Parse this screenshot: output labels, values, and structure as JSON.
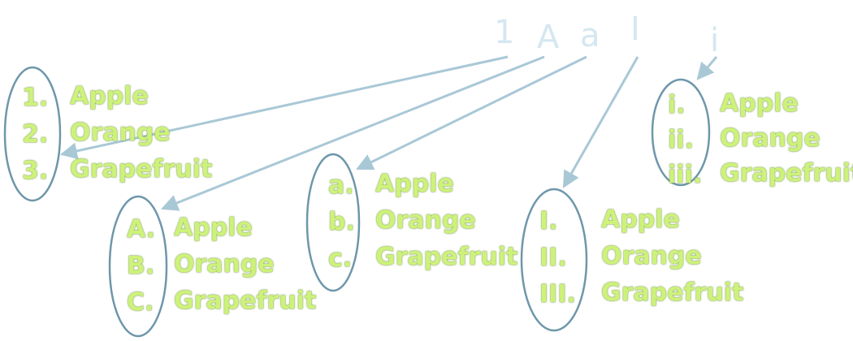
{
  "colors": {
    "header": "#d5e7f0",
    "arrow": "#a9c8d6",
    "ellipse": "#6e97aa",
    "item_fill": "#cdf27a",
    "item_outline": "#7c9950"
  },
  "headers": [
    "1",
    "A",
    "a",
    "I",
    "i"
  ],
  "groups": [
    {
      "type": "decimal",
      "markers": [
        "1.",
        "2.",
        "3."
      ],
      "items": [
        "Apple",
        "Orange",
        "Grapefruit"
      ]
    },
    {
      "type": "upper-alpha",
      "markers": [
        "A.",
        "B.",
        "C."
      ],
      "items": [
        "Apple",
        "Orange",
        "Grapefruit"
      ]
    },
    {
      "type": "lower-alpha",
      "markers": [
        "a.",
        "b.",
        "c."
      ],
      "items": [
        "Apple",
        "Orange",
        "Grapefruit"
      ]
    },
    {
      "type": "upper-roman",
      "markers": [
        "I.",
        "II.",
        "III."
      ],
      "items": [
        "Apple",
        "Orange",
        "Grapefruit"
      ]
    },
    {
      "type": "lower-roman",
      "markers": [
        "i.",
        "ii.",
        "iii."
      ],
      "items": [
        "Apple",
        "Orange",
        "Grapefruit"
      ]
    }
  ]
}
